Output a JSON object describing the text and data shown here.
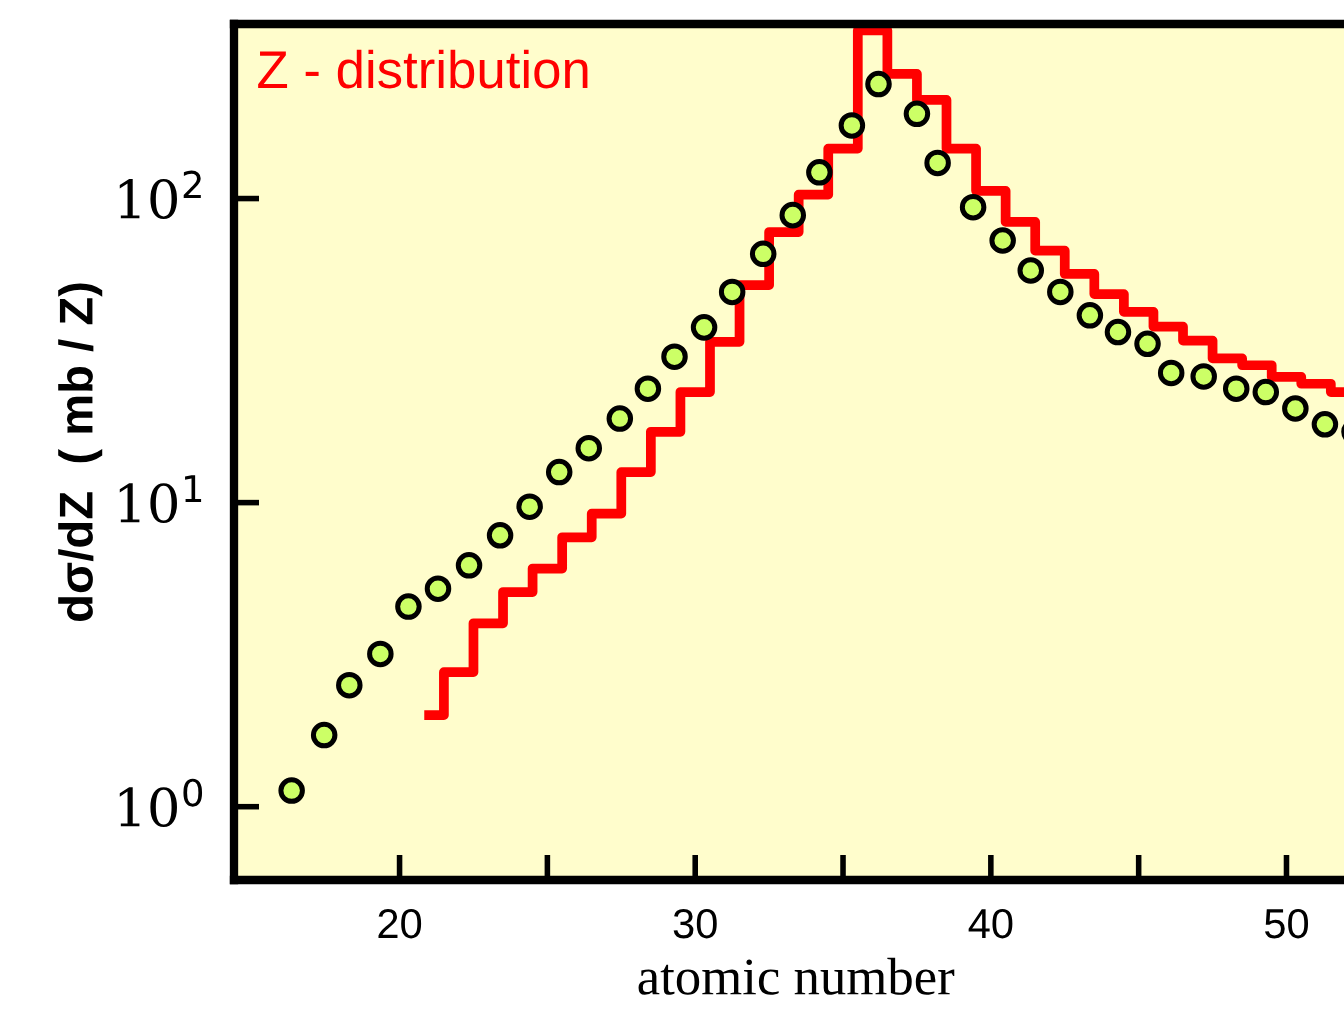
{
  "chart_data": {
    "type": "scatter",
    "xlabel": "atomic number",
    "ylabel": "dσ/dZ  ( mb / Z)",
    "log": "y",
    "xlim": [
      14.4,
      52.4
    ],
    "ylim": [
      0.574,
      375
    ],
    "xticks": [
      20,
      {
        "value": 25,
        "label": null
      },
      30,
      {
        "value": 35,
        "label": null
      },
      40,
      {
        "value": 45,
        "label": null
      },
      50
    ],
    "yticks": [
      {
        "value": 1,
        "label": "10$^{0}$"
      },
      {
        "value": 10,
        "label": "10$^{1}$"
      },
      {
        "value": 100,
        "label": "10$^{2}$"
      }
    ],
    "grid": false,
    "series": [
      {
        "marker": "circle",
        "color": "#ccff66",
        "x": [
          16.35,
          17.45,
          18.3,
          19.35,
          20.3,
          21.3,
          22.35,
          23.4,
          24.4,
          25.4,
          26.4,
          27.45,
          28.4,
          29.3,
          30.3,
          31.25,
          32.3,
          33.3,
          34.2,
          35.3,
          36.2,
          37.5,
          38.2,
          39.4,
          40.4,
          41.35,
          42.35,
          43.35,
          44.3,
          45.3,
          46.1,
          47.2,
          48.3,
          49.3,
          50.3,
          51.3,
          52.3
        ],
        "values": [
          1.13,
          1.72,
          2.51,
          3.18,
          4.55,
          5.21,
          6.22,
          7.81,
          9.7,
          12.6,
          15.1,
          18.9,
          23.7,
          30.2,
          37.7,
          49.3,
          65.8,
          88.2,
          122,
          174,
          238,
          190,
          131,
          93.7,
          72.8,
          58,
          49.3,
          41.3,
          36.4,
          33.3,
          26.7,
          26.0,
          23.7,
          23.1,
          20.4,
          18.1,
          17.1
        ]
      },
      {
        "type": "step",
        "name": "Z - distribution",
        "color": "#ff0000",
        "x": [
          21,
          22,
          23,
          24,
          25,
          26,
          27,
          28,
          29,
          30,
          31,
          32,
          33,
          34,
          35,
          36,
          37,
          38,
          39,
          40,
          41,
          42,
          43,
          44,
          45,
          46,
          47,
          48,
          49,
          50,
          51,
          52
        ],
        "values": [
          2.0,
          2.77,
          4.01,
          5.08,
          6.07,
          7.69,
          9.2,
          12.6,
          17.1,
          23.1,
          33.8,
          51.9,
          77.6,
          103,
          146,
          357,
          257,
          211,
          146,
          106,
          83.8,
          67.4,
          56.5,
          48.5,
          42.4,
          37.9,
          34.1,
          29.8,
          28.3,
          25.9,
          24.6,
          23.1
        ]
      }
    ]
  }
}
